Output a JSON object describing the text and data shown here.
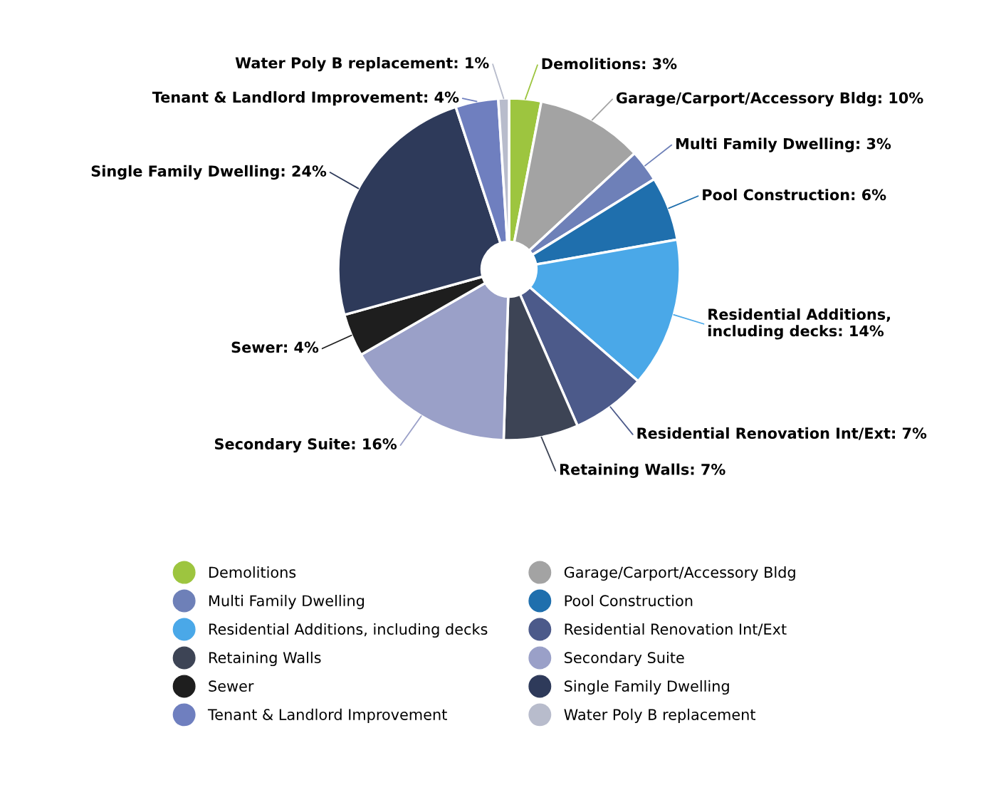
{
  "chart_data": {
    "type": "donut",
    "categories": [
      "Demolitions",
      "Garage/Carport/Accessory Bldg",
      "Multi Family Dwelling",
      "Pool Construction",
      "Residential Additions, including decks",
      "Residential Renovation Int/Ext",
      "Retaining Walls",
      "Secondary Suite",
      "Sewer",
      "Single Family Dwelling",
      "Tenant & Landlord Improvement",
      "Water Poly B replacement"
    ],
    "values": [
      3,
      10,
      3,
      6,
      14,
      7,
      7,
      16,
      4,
      24,
      4,
      1
    ],
    "colors": [
      "#9dc53f",
      "#a3a3a3",
      "#6e80b8",
      "#1f6fad",
      "#4aa8e8",
      "#4c5a8a",
      "#3d4455",
      "#9aa0c8",
      "#1e1e1e",
      "#2e3a5a",
      "#6f7fbf",
      "#b8bccc"
    ],
    "value_labels": [
      "Demolitions: 3%",
      "Garage/Carport/Accessory Bldg: 10%",
      "Multi Family Dwelling: 3%",
      "Pool Construction: 6%",
      "Residential Additions,\nincluding decks: 14%",
      "Residential Renovation Int/Ext: 7%",
      "Retaining Walls: 7%",
      "Secondary Suite: 16%",
      "Sewer: 4%",
      "Single Family Dwelling: 24%",
      "Tenant & Landlord Improvement: 4%",
      "Water Poly B replacement: 1%"
    ],
    "legend": "bottom"
  }
}
